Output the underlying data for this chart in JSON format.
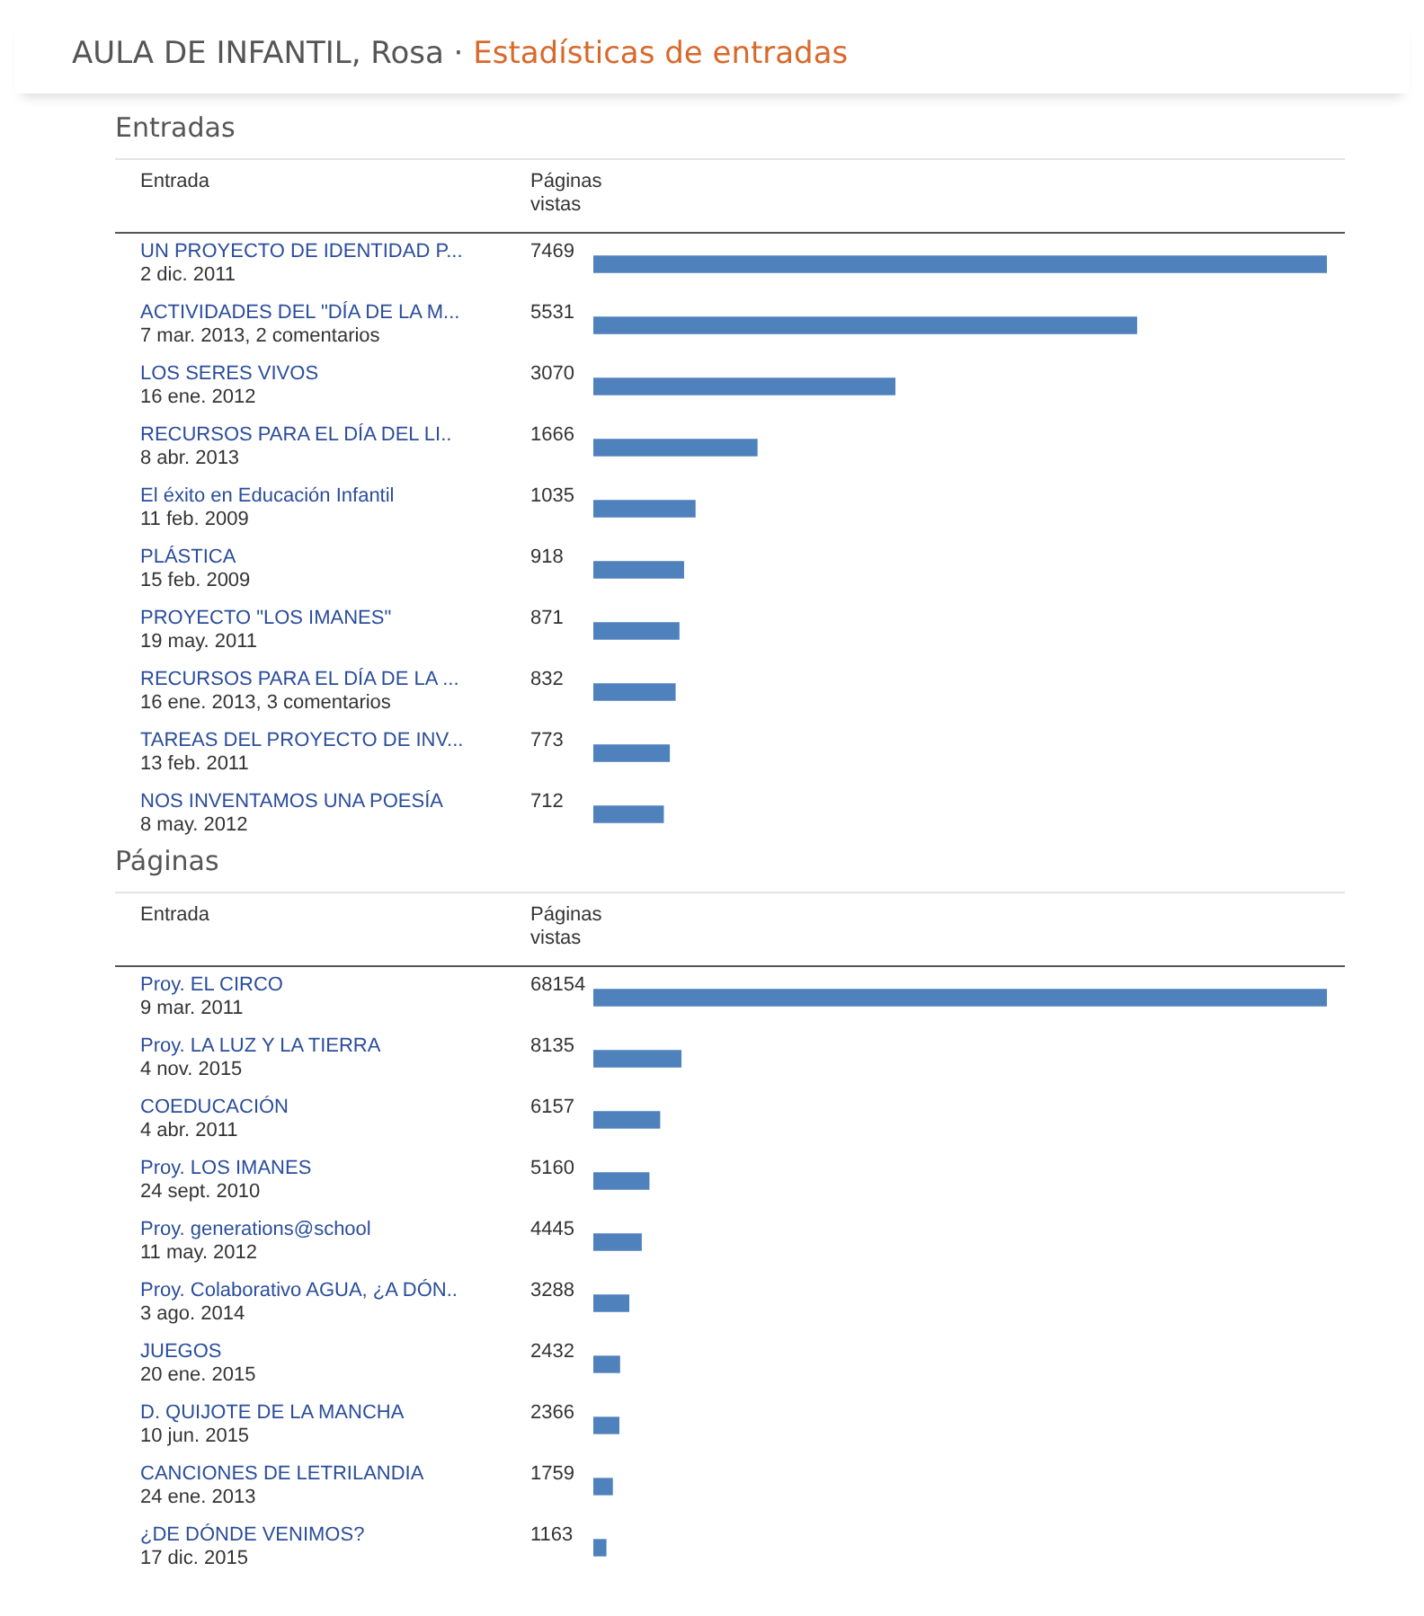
{
  "chart_data": [
    {
      "type": "bar",
      "orientation": "horizontal",
      "title": "AULA DE INFANTIL, Rosa · Estadísticas de entradas",
      "subtitle": "Entradas",
      "ylabel": "Entrada",
      "xlabel": "Páginas vistas",
      "data_labels": true,
      "legend": false,
      "color": "#4f81bd",
      "categories": [
        "UN PROYECTO DE IDENTIDAD P...",
        "ACTIVIDADES DEL \"DÍA DE LA M...",
        "LOS SERES VIVOS",
        "RECURSOS PARA EL DÍA DEL LI..",
        "El éxito en Educación Infantil",
        "PLÁSTICA",
        "PROYECTO \"LOS IMANES\"",
        "RECURSOS PARA EL DÍA DE LA ...",
        "TAREAS DEL PROYECTO DE INV...",
        "NOS INVENTAMOS UNA POESÍA"
      ],
      "values": [
        7469,
        5531,
        3070,
        1666,
        1035,
        918,
        871,
        832,
        773,
        712
      ],
      "annotations": [
        "2 dic. 2011",
        "7 mar. 2013, 2 comentarios",
        "16 ene. 2012",
        "8 abr. 2013",
        "11 feb. 2009",
        "15 feb. 2009",
        "19 may. 2011",
        "16 ene. 2013, 3 comentarios",
        "13 feb. 2011",
        "8 may. 2012"
      ]
    },
    {
      "type": "bar",
      "orientation": "horizontal",
      "title": "Páginas",
      "ylabel": "Entrada",
      "xlabel": "Páginas vistas",
      "data_labels": true,
      "legend": false,
      "color": "#4f81bd",
      "categories": [
        "Proy. EL CIRCO",
        "Proy. LA LUZ Y LA TIERRA",
        "COEDUCACIÓN",
        "Proy. LOS IMANES",
        "Proy. generations@school",
        "Proy. Colaborativo AGUA, ¿A DÓN..",
        "JUEGOS",
        "D. QUIJOTE DE LA MANCHA",
        "CANCIONES DE LETRILANDIA",
        "¿DE DÓNDE VENIMOS?"
      ],
      "values": [
        68154,
        8135,
        6157,
        5160,
        4445,
        3288,
        2432,
        2366,
        1759,
        1163
      ],
      "annotations": [
        "9 mar. 2011",
        "4 nov. 2015",
        "4 abr. 2011",
        "24 sept. 2010",
        "11 may. 2012",
        "3 ago. 2014",
        "20 ene. 2015",
        "10 jun. 2015",
        "24 ene. 2013",
        "17 dic. 2015"
      ]
    }
  ]
}
